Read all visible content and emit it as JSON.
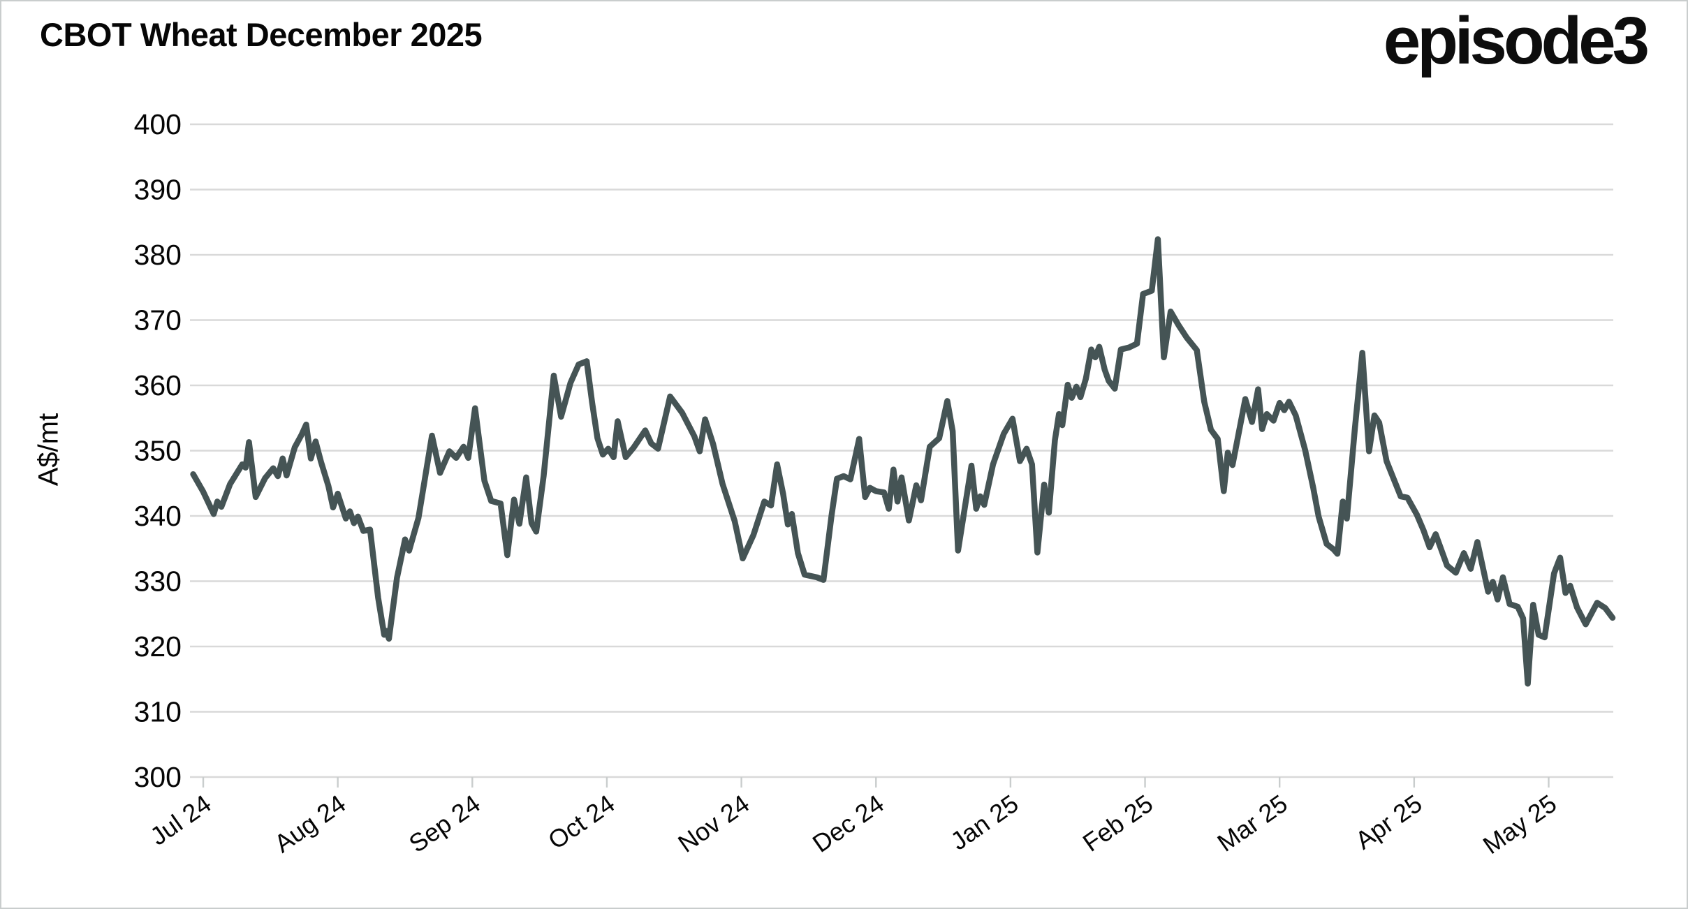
{
  "header": {
    "title": "CBOT Wheat December 2025",
    "logo_text": "episode3"
  },
  "chart_data": {
    "type": "line",
    "title": "CBOT Wheat December 2025",
    "xlabel": "",
    "ylabel": "A$/mt",
    "ylim": [
      300,
      400
    ],
    "yticks": [
      300,
      310,
      320,
      330,
      340,
      350,
      360,
      370,
      380,
      390,
      400
    ],
    "x_tick_labels": [
      "Jul 24",
      "Aug 24",
      "Sep 24",
      "Oct 24",
      "Nov 24",
      "Dec 24",
      "Jan 25",
      "Feb 25",
      "Mar 25",
      "Apr 25",
      "May 25"
    ],
    "grid": true,
    "legend_position": "none",
    "line_color": "#455455",
    "gridline_color": "#d9d9d9",
    "tick_mark_color": "#c9cdcd",
    "label_color": "#060606",
    "series": [
      {
        "name": "CBOT Wheat December 2025 (A$/mt)",
        "x_unit": "months_since_jul_2024_tick",
        "points": [
          [
            -0.075,
            346.4
          ],
          [
            0,
            343.7
          ],
          [
            0.078,
            340.3
          ],
          [
            0.105,
            342.2
          ],
          [
            0.135,
            341.4
          ],
          [
            0.2,
            344.9
          ],
          [
            0.26,
            346.9
          ],
          [
            0.29,
            347.9
          ],
          [
            0.315,
            347.4
          ],
          [
            0.34,
            351.3
          ],
          [
            0.39,
            342.9
          ],
          [
            0.46,
            345.8
          ],
          [
            0.52,
            347.3
          ],
          [
            0.555,
            346.1
          ],
          [
            0.59,
            348.8
          ],
          [
            0.62,
            346.2
          ],
          [
            0.68,
            350.5
          ],
          [
            0.73,
            352.4
          ],
          [
            0.765,
            354
          ],
          [
            0.8,
            348.8
          ],
          [
            0.835,
            351.4
          ],
          [
            0.875,
            348.3
          ],
          [
            0.93,
            344.6
          ],
          [
            0.965,
            341.3
          ],
          [
            1,
            343.4
          ],
          [
            1.06,
            339.6
          ],
          [
            1.09,
            340.7
          ],
          [
            1.12,
            338.9
          ],
          [
            1.15,
            339.9
          ],
          [
            1.19,
            337.7
          ],
          [
            1.24,
            337.9
          ],
          [
            1.3,
            327.5
          ],
          [
            1.345,
            321.8
          ],
          [
            1.36,
            322.4
          ],
          [
            1.38,
            321.2
          ],
          [
            1.44,
            330.5
          ],
          [
            1.5,
            336.4
          ],
          [
            1.53,
            334.7
          ],
          [
            1.6,
            339.7
          ],
          [
            1.7,
            352.3
          ],
          [
            1.76,
            346.6
          ],
          [
            1.83,
            349.9
          ],
          [
            1.88,
            348.9
          ],
          [
            1.935,
            350.6
          ],
          [
            1.97,
            348.9
          ],
          [
            2.02,
            356.5
          ],
          [
            2.09,
            345.4
          ],
          [
            2.14,
            342.3
          ],
          [
            2.21,
            341.9
          ],
          [
            2.26,
            334
          ],
          [
            2.31,
            342.5
          ],
          [
            2.35,
            338.8
          ],
          [
            2.4,
            345.9
          ],
          [
            2.44,
            338.9
          ],
          [
            2.475,
            337.6
          ],
          [
            2.53,
            346.1
          ],
          [
            2.605,
            361.5
          ],
          [
            2.66,
            355.2
          ],
          [
            2.73,
            360.4
          ],
          [
            2.79,
            363.2
          ],
          [
            2.85,
            363.7
          ],
          [
            2.89,
            357.4
          ],
          [
            2.93,
            351.9
          ],
          [
            2.97,
            349.4
          ],
          [
            3.01,
            350.3
          ],
          [
            3.05,
            349
          ],
          [
            3.08,
            354.5
          ],
          [
            3.14,
            349
          ],
          [
            3.2,
            350.5
          ],
          [
            3.285,
            353.1
          ],
          [
            3.33,
            351.1
          ],
          [
            3.38,
            350.3
          ],
          [
            3.47,
            358.3
          ],
          [
            3.56,
            355.8
          ],
          [
            3.65,
            352.2
          ],
          [
            3.69,
            349.9
          ],
          [
            3.73,
            354.8
          ],
          [
            3.79,
            351
          ],
          [
            3.86,
            344.9
          ],
          [
            3.95,
            339.2
          ],
          [
            4.01,
            333.5
          ],
          [
            4.09,
            337.1
          ],
          [
            4.17,
            342.2
          ],
          [
            4.22,
            341.6
          ],
          [
            4.265,
            347.9
          ],
          [
            4.31,
            343.4
          ],
          [
            4.345,
            338.7
          ],
          [
            4.375,
            340.3
          ],
          [
            4.42,
            334.3
          ],
          [
            4.47,
            331
          ],
          [
            4.56,
            330.6
          ],
          [
            4.61,
            330.2
          ],
          [
            4.67,
            340.1
          ],
          [
            4.71,
            345.7
          ],
          [
            4.76,
            346.1
          ],
          [
            4.81,
            345.6
          ],
          [
            4.875,
            351.8
          ],
          [
            4.92,
            342.9
          ],
          [
            4.955,
            344.3
          ],
          [
            5,
            343.8
          ],
          [
            5.06,
            343.6
          ],
          [
            5.095,
            341.1
          ],
          [
            5.13,
            347.1
          ],
          [
            5.16,
            342.2
          ],
          [
            5.19,
            345.9
          ],
          [
            5.245,
            339.3
          ],
          [
            5.3,
            344.7
          ],
          [
            5.335,
            342.4
          ],
          [
            5.4,
            350.6
          ],
          [
            5.47,
            351.9
          ],
          [
            5.53,
            357.6
          ],
          [
            5.57,
            353
          ],
          [
            5.61,
            334.7
          ],
          [
            5.71,
            347.7
          ],
          [
            5.745,
            341.1
          ],
          [
            5.775,
            343
          ],
          [
            5.805,
            341.7
          ],
          [
            5.87,
            347.9
          ],
          [
            5.95,
            352.6
          ],
          [
            6.015,
            354.9
          ],
          [
            6.07,
            348.4
          ],
          [
            6.12,
            350.3
          ],
          [
            6.16,
            347.9
          ],
          [
            6.2,
            334.4
          ],
          [
            6.25,
            344.8
          ],
          [
            6.285,
            340.5
          ],
          [
            6.33,
            351.6
          ],
          [
            6.36,
            355.6
          ],
          [
            6.385,
            353.9
          ],
          [
            6.425,
            360.1
          ],
          [
            6.455,
            358.1
          ],
          [
            6.49,
            359.8
          ],
          [
            6.52,
            358.2
          ],
          [
            6.56,
            361
          ],
          [
            6.6,
            365.5
          ],
          [
            6.63,
            364.3
          ],
          [
            6.66,
            365.9
          ],
          [
            6.7,
            362.4
          ],
          [
            6.73,
            360.7
          ],
          [
            6.775,
            359.5
          ],
          [
            6.82,
            365.5
          ],
          [
            6.88,
            365.8
          ],
          [
            6.94,
            366.4
          ],
          [
            6.985,
            374
          ],
          [
            7.05,
            374.5
          ],
          [
            7.095,
            382.4
          ],
          [
            7.14,
            364.3
          ],
          [
            7.19,
            371.3
          ],
          [
            7.25,
            369.2
          ],
          [
            7.31,
            367.3
          ],
          [
            7.385,
            365.4
          ],
          [
            7.44,
            357.5
          ],
          [
            7.49,
            353.2
          ],
          [
            7.54,
            351.8
          ],
          [
            7.585,
            343.8
          ],
          [
            7.615,
            349.7
          ],
          [
            7.65,
            347.8
          ],
          [
            7.745,
            357.9
          ],
          [
            7.795,
            354.4
          ],
          [
            7.84,
            359.4
          ],
          [
            7.87,
            353.3
          ],
          [
            7.905,
            355.6
          ],
          [
            7.955,
            354.6
          ],
          [
            8,
            357.3
          ],
          [
            8.035,
            356.2
          ],
          [
            8.07,
            357.5
          ],
          [
            8.12,
            355.4
          ],
          [
            8.19,
            350.1
          ],
          [
            8.25,
            344.3
          ],
          [
            8.29,
            339.9
          ],
          [
            8.35,
            335.7
          ],
          [
            8.4,
            334.9
          ],
          [
            8.43,
            334.2
          ],
          [
            8.47,
            342.2
          ],
          [
            8.5,
            339.6
          ],
          [
            8.56,
            353.5
          ],
          [
            8.615,
            365
          ],
          [
            8.665,
            349.9
          ],
          [
            8.705,
            355.4
          ],
          [
            8.74,
            354.3
          ],
          [
            8.795,
            348.4
          ],
          [
            8.83,
            346.6
          ],
          [
            8.9,
            343
          ],
          [
            8.95,
            342.8
          ],
          [
            9.02,
            340.2
          ],
          [
            9.07,
            337.8
          ],
          [
            9.115,
            335.2
          ],
          [
            9.16,
            337.2
          ],
          [
            9.245,
            332.4
          ],
          [
            9.31,
            331.3
          ],
          [
            9.37,
            334.3
          ],
          [
            9.42,
            331.9
          ],
          [
            9.47,
            336
          ],
          [
            9.55,
            328.4
          ],
          [
            9.585,
            329.9
          ],
          [
            9.62,
            327.2
          ],
          [
            9.66,
            330.6
          ],
          [
            9.71,
            326.5
          ],
          [
            9.77,
            326.1
          ],
          [
            9.81,
            324.3
          ],
          [
            9.845,
            314.3
          ],
          [
            9.885,
            326.4
          ],
          [
            9.925,
            321.8
          ],
          [
            9.97,
            321.4
          ],
          [
            10.04,
            331.2
          ],
          [
            10.085,
            333.6
          ],
          [
            10.125,
            328.2
          ],
          [
            10.16,
            329.3
          ],
          [
            10.21,
            326
          ],
          [
            10.275,
            323.4
          ],
          [
            10.36,
            326.7
          ],
          [
            10.42,
            325.9
          ],
          [
            10.475,
            324.4
          ]
        ]
      }
    ]
  }
}
